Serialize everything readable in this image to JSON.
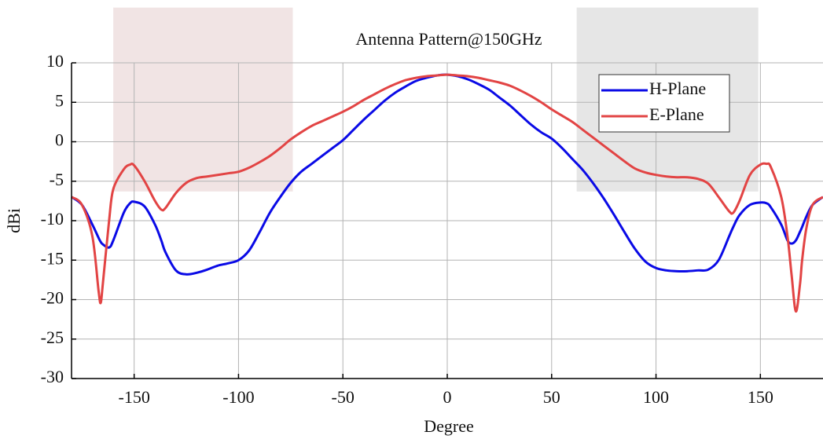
{
  "chart_data": {
    "type": "line",
    "title": "Antenna Pattern@150GHz",
    "x_label": "Degree",
    "y_label": "dBi",
    "x": [
      -180,
      -175,
      -170,
      -167,
      -166,
      -165,
      -162,
      -160,
      -155,
      -152,
      -150,
      -145,
      -140,
      -137,
      -135,
      -130,
      -125,
      -120,
      -115,
      -110,
      -105,
      -100,
      -95,
      -90,
      -85,
      -80,
      -75,
      -70,
      -65,
      -60,
      -55,
      -50,
      -45,
      -40,
      -35,
      -30,
      -25,
      -20,
      -15,
      -10,
      -5,
      0,
      5,
      10,
      15,
      20,
      25,
      30,
      35,
      40,
      45,
      50,
      55,
      60,
      65,
      70,
      75,
      80,
      85,
      90,
      95,
      100,
      105,
      110,
      115,
      120,
      125,
      130,
      135,
      137,
      140,
      145,
      150,
      153,
      155,
      160,
      163,
      165,
      167,
      169,
      170,
      172,
      175,
      180
    ],
    "series": [
      {
        "name": "H-Plane",
        "color": "#0a0ae6",
        "values": [
          -7,
          -8,
          -10.5,
          -12.2,
          -12.7,
          -13,
          -13.4,
          -12.5,
          -9,
          -7.8,
          -7.6,
          -8.2,
          -10.5,
          -12.5,
          -14,
          -16.3,
          -16.8,
          -16.6,
          -16.2,
          -15.7,
          -15.4,
          -15,
          -13.8,
          -11.5,
          -9,
          -7,
          -5.2,
          -3.8,
          -2.8,
          -1.8,
          -0.8,
          0.2,
          1.5,
          2.8,
          4,
          5.2,
          6.2,
          7,
          7.7,
          8.1,
          8.4,
          8.5,
          8.3,
          7.9,
          7.3,
          6.6,
          5.6,
          4.6,
          3.4,
          2.2,
          1.2,
          0.4,
          -0.8,
          -2.2,
          -3.6,
          -5.3,
          -7.2,
          -9.3,
          -11.5,
          -13.6,
          -15.2,
          -16,
          -16.3,
          -16.4,
          -16.4,
          -16.3,
          -16.2,
          -15,
          -12,
          -10.8,
          -9.3,
          -8,
          -7.7,
          -7.8,
          -8.3,
          -10.5,
          -12.5,
          -12.9,
          -12.5,
          -11.4,
          -10.8,
          -9.5,
          -8,
          -7
        ]
      },
      {
        "name": "E-Plane",
        "color": "#e24444",
        "values": [
          -7,
          -8,
          -12,
          -19,
          -20.4,
          -18,
          -10,
          -6,
          -3.5,
          -2.9,
          -3,
          -5,
          -7.5,
          -8.6,
          -8.4,
          -6.5,
          -5.2,
          -4.6,
          -4.4,
          -4.2,
          -4,
          -3.8,
          -3.3,
          -2.6,
          -1.8,
          -0.8,
          0.3,
          1.2,
          2,
          2.6,
          3.2,
          3.8,
          4.5,
          5.3,
          6,
          6.7,
          7.3,
          7.8,
          8.1,
          8.3,
          8.4,
          8.5,
          8.4,
          8.3,
          8.1,
          7.8,
          7.5,
          7.1,
          6.5,
          5.8,
          5,
          4.1,
          3.3,
          2.5,
          1.5,
          0.5,
          -0.5,
          -1.5,
          -2.5,
          -3.4,
          -3.9,
          -4.2,
          -4.4,
          -4.5,
          -4.5,
          -4.7,
          -5.3,
          -7,
          -8.8,
          -9,
          -7.5,
          -4.2,
          -2.9,
          -2.8,
          -3.2,
          -7,
          -12,
          -17,
          -21.5,
          -18,
          -15,
          -11,
          -8,
          -7
        ]
      }
    ],
    "regions": [
      {
        "x": [
          -160,
          -74
        ],
        "y": [
          -6.3,
          17
        ],
        "color": "#f1e4e4"
      },
      {
        "x": [
          62,
          149
        ],
        "y": [
          -6.3,
          17
        ],
        "color": "#e6e6e6"
      }
    ],
    "xlim": [
      -180,
      180
    ],
    "ylim": [
      -30,
      10
    ],
    "xticks": [
      -150,
      -100,
      -50,
      0,
      50,
      100,
      150
    ],
    "yticks": [
      -30,
      -25,
      -20,
      -15,
      -10,
      -5,
      0,
      5,
      10
    ],
    "grid": true,
    "legend": "upper right"
  }
}
